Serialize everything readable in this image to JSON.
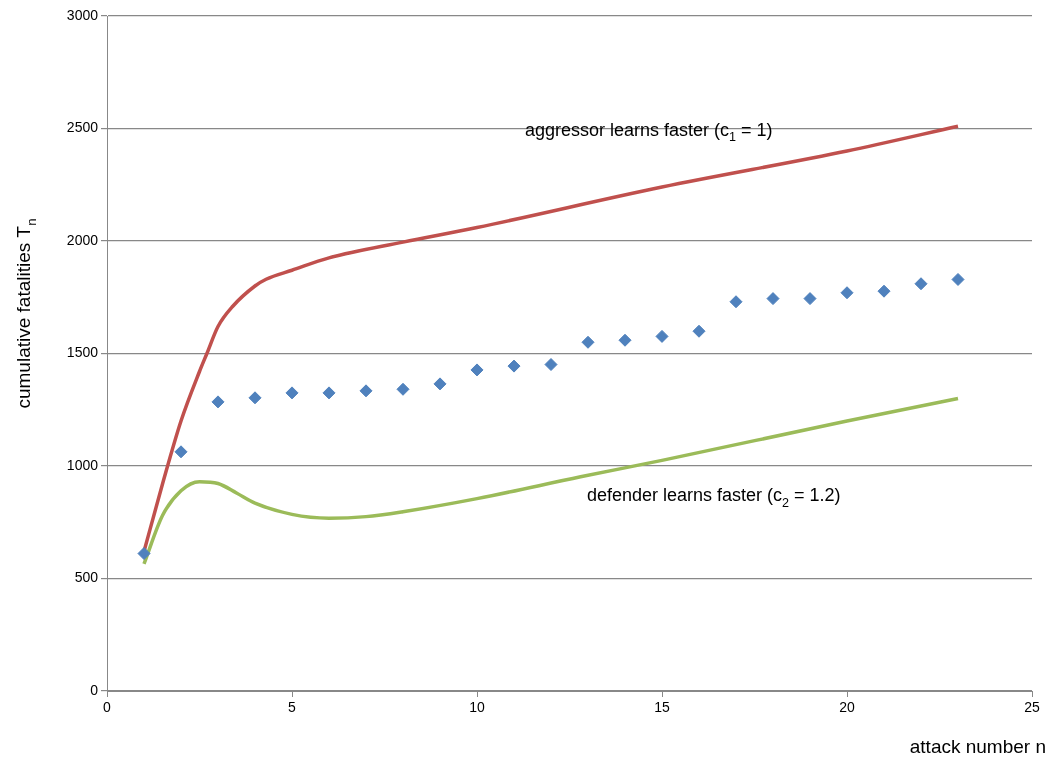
{
  "chart_data": {
    "type": "line",
    "xlabel": "attack number n",
    "ylabel": "cumulative fatalities T$_{n}$",
    "xlim": [
      0,
      25
    ],
    "xticks": [
      0,
      5,
      10,
      15,
      20,
      25
    ],
    "ylim": [
      0,
      3000
    ],
    "yticks": [
      0,
      500,
      1000,
      1500,
      2000,
      2500,
      3000
    ],
    "grid": "y",
    "legend": false,
    "series": [
      {
        "type": "scatter",
        "marker": "diamond",
        "color": "#4f81bd",
        "x": [
          1,
          2,
          3,
          4,
          5,
          6,
          7,
          8,
          9,
          10,
          11,
          12,
          13,
          14,
          15,
          16,
          17,
          18,
          19,
          20,
          21,
          22,
          23
        ],
        "values": [
          611,
          1063,
          1285,
          1303,
          1325,
          1325,
          1334,
          1341,
          1365,
          1427,
          1444,
          1451,
          1550,
          1559,
          1576,
          1599,
          1730,
          1744,
          1744,
          1770,
          1777,
          1810,
          1829
        ]
      },
      {
        "type": "line",
        "marker": "none",
        "name": "aggressor learns faster (c$_{1}$ = 1)",
        "color": "#c0504d",
        "x": [
          1,
          1.5,
          2,
          2.5,
          2.7,
          3,
          3.4,
          4,
          4.3,
          5,
          6,
          8,
          10,
          15,
          20,
          23
        ],
        "values": [
          620,
          920,
          1200,
          1420,
          1500,
          1620,
          1710,
          1800,
          1830,
          1870,
          1925,
          1995,
          2060,
          2240,
          2400,
          2510
        ]
      },
      {
        "type": "line",
        "marker": "none",
        "name": "defender learns faster (c$_{2}$ = 1.2)",
        "color": "#9bbb59",
        "x": [
          1,
          1.5,
          2,
          2.5,
          3,
          3.5,
          4,
          5,
          6,
          7,
          8,
          10,
          12.8,
          15,
          20,
          23
        ],
        "values": [
          565,
          780,
          890,
          930,
          922,
          880,
          835,
          785,
          768,
          775,
          797,
          855,
          952,
          1025,
          1200,
          1300
        ]
      }
    ]
  }
}
